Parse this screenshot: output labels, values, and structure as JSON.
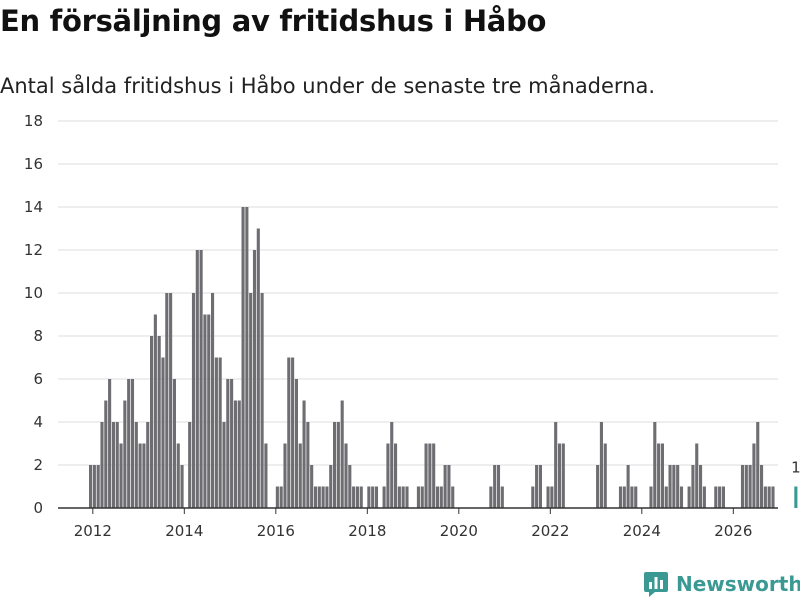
{
  "chart_data": {
    "type": "bar",
    "title": "En försäljning av fritidshus i Håbo",
    "subtitle": "Antal sålda fritidshus i Håbo under de senaste tre månaderna.",
    "xlabel": "",
    "ylabel": "",
    "ylim": [
      0,
      18
    ],
    "yticks": [
      "0",
      "2",
      "4",
      "6",
      "8",
      "10",
      "12",
      "14",
      "16",
      "18"
    ],
    "xticks": [
      "2012",
      "2014",
      "2016",
      "2018",
      "2020",
      "2022",
      "2024",
      "2026"
    ],
    "x_start": "2011-12",
    "values": [
      2,
      2,
      2,
      4,
      5,
      6,
      4,
      4,
      3,
      5,
      6,
      6,
      4,
      3,
      3,
      4,
      8,
      9,
      8,
      7,
      10,
      10,
      6,
      3,
      2,
      0,
      4,
      10,
      12,
      12,
      9,
      9,
      10,
      7,
      7,
      4,
      6,
      6,
      5,
      5,
      14,
      14,
      10,
      12,
      13,
      10,
      3,
      0,
      0,
      1,
      1,
      3,
      7,
      7,
      6,
      3,
      5,
      4,
      2,
      1,
      1,
      1,
      1,
      2,
      4,
      4,
      5,
      3,
      2,
      1,
      1,
      1,
      0,
      1,
      1,
      1,
      0,
      1,
      3,
      4,
      3,
      1,
      1,
      1,
      0,
      0,
      1,
      1,
      3,
      3,
      3,
      1,
      1,
      2,
      2,
      1,
      0,
      0,
      0,
      0,
      0,
      0,
      0,
      0,
      0,
      1,
      2,
      2,
      1,
      0,
      0,
      0,
      0,
      0,
      0,
      0,
      1,
      2,
      2,
      0,
      1,
      1,
      4,
      3,
      3,
      0,
      0,
      0,
      0,
      0,
      0,
      0,
      0,
      2,
      4,
      3,
      0,
      0,
      0,
      1,
      1,
      2,
      1,
      1,
      0,
      0,
      0,
      1,
      4,
      3,
      3,
      1,
      2,
      2,
      2,
      1,
      0,
      1,
      2,
      3,
      2,
      1,
      0,
      0,
      1,
      1,
      1,
      0,
      0,
      0,
      0,
      2,
      2,
      2,
      3,
      4,
      2,
      1,
      1,
      1,
      0,
      0,
      0,
      0,
      0,
      1
    ],
    "highlight_last": true,
    "annotations": [
      {
        "label": "1"
      }
    ],
    "colors": {
      "bar": "#6e6d72",
      "highlight": "#3a9a93",
      "grid": "#dddddd",
      "axis": "#333333"
    }
  },
  "brand": {
    "name": "Newsworthy",
    "color": "#3a9a93"
  }
}
